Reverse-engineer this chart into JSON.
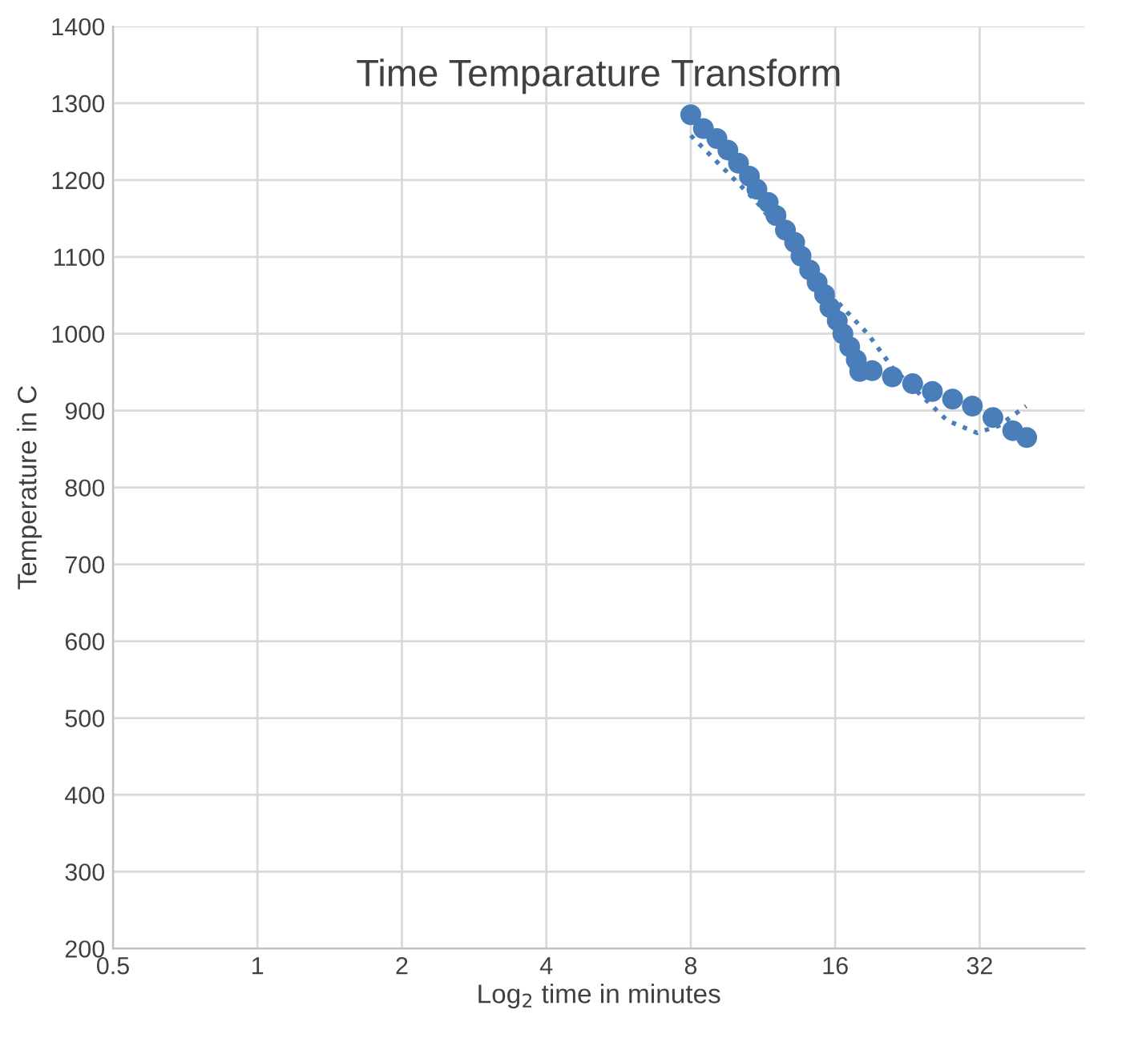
{
  "chart_data": {
    "type": "scatter",
    "title": "Time Temparature Transform",
    "xlabel": "Log$_{2}$ time in minutes",
    "ylabel": "Temperature in C",
    "log": "x",
    "xlim": [
      0.5,
      53
    ],
    "xticks": [
      0.5,
      1,
      2,
      4,
      8,
      16,
      32
    ],
    "ylim": [
      200,
      1400
    ],
    "yticks": [
      200,
      300,
      400,
      500,
      600,
      700,
      800,
      900,
      1000,
      1100,
      1200,
      1300,
      1400
    ],
    "grid": true,
    "series": [
      {
        "marker": "circle",
        "color": "#4a7ebb",
        "x": [
          8.0,
          8.5,
          9.07,
          9.56,
          10.06,
          10.6,
          10.99,
          11.6,
          12.04,
          12.6,
          13.17,
          13.58,
          14.15,
          14.67,
          15.2,
          15.6,
          16.16,
          16.6,
          17.15,
          17.7,
          18.0,
          19.1,
          21.05,
          23.2,
          25.5,
          28.1,
          30.9,
          34.1,
          37.5,
          40.1
        ],
        "values": [
          1285,
          1267,
          1254,
          1239,
          1222,
          1205,
          1188,
          1171,
          1154,
          1135,
          1119,
          1101,
          1083,
          1067,
          1051,
          1034,
          1017,
          1000,
          983,
          966,
          951,
          952,
          944,
          935,
          925,
          915,
          906,
          891,
          874,
          865
        ]
      },
      {
        "type": "line",
        "line_style": "dotted",
        "color": "#4a7ebb",
        "x": [
          8.0,
          11.0,
          15.8,
          18.7,
          21.05,
          27.4,
          31.6,
          35.0,
          40.0
        ],
        "values": [
          1258,
          1171,
          1048,
          1000,
          956,
          887,
          871,
          880,
          906
        ]
      }
    ]
  }
}
